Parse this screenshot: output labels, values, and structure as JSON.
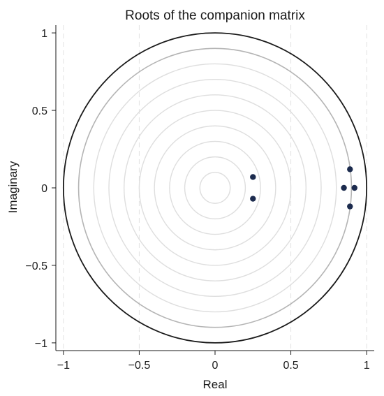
{
  "chart_data": {
    "type": "scatter",
    "title": "Roots of the companion matrix",
    "xlabel": "Real",
    "ylabel": "Imaginary",
    "xlim": [
      -1.05,
      1.05
    ],
    "ylim": [
      -1.05,
      1.05
    ],
    "x_ticks": [
      -1,
      -0.5,
      0,
      0.5,
      1
    ],
    "x_tick_labels": [
      "−1",
      "−0.5",
      "0",
      "0.5",
      "1"
    ],
    "y_ticks": [
      -1,
      -0.5,
      0,
      0.5,
      1
    ],
    "y_tick_labels": [
      "−1",
      "−0.5",
      "0",
      "0.5",
      "1"
    ],
    "vertical_gridlines": [
      -1,
      -0.5,
      0.5,
      1
    ],
    "unit_circle_radius": 1,
    "reference_circle_radii": [
      0.1,
      0.2,
      0.3,
      0.4,
      0.5,
      0.6,
      0.7,
      0.8,
      0.9
    ],
    "points": [
      {
        "x": 0.25,
        "y": 0.07
      },
      {
        "x": 0.25,
        "y": -0.07
      },
      {
        "x": 0.89,
        "y": 0.12
      },
      {
        "x": 0.89,
        "y": -0.12
      },
      {
        "x": 0.85,
        "y": 0.0
      },
      {
        "x": 0.92,
        "y": 0.0
      }
    ],
    "colors": {
      "point": "#1c2b4e",
      "unit_circle": "#1a1a1a",
      "outer_reference_circle": "#b4b4b4",
      "reference_circle": "#dedede",
      "grid": "#e2e2e2",
      "axis": "#1a1a1a"
    }
  }
}
